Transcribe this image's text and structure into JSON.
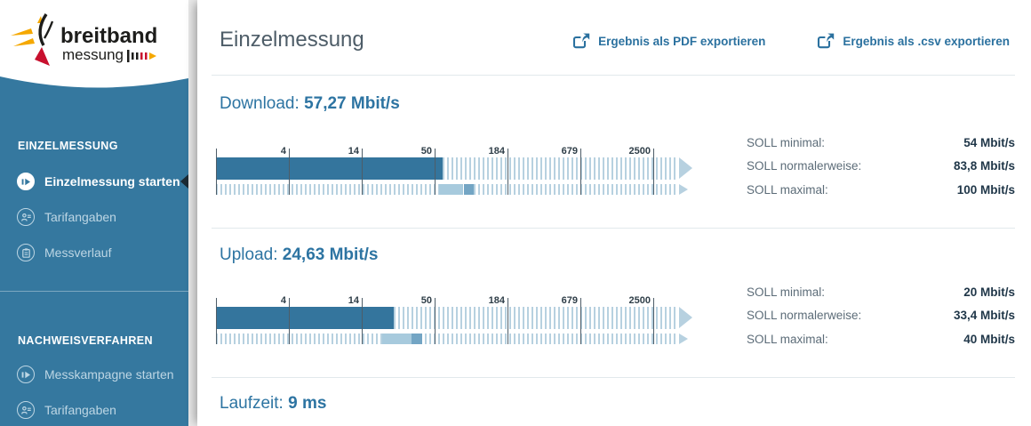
{
  "brand": {
    "line1": "breitband",
    "line2": "messung"
  },
  "colors": {
    "sidebar": "#35789f",
    "accent_blue": "#2d74a2",
    "bar_fill": "#34759d",
    "hatch_stripe": "#b7d1e0",
    "soll_range_low": "#a7cadd",
    "soll_range_high": "#73a5c4",
    "brand_red": "#c8102e",
    "brand_yellow": "#f5a800"
  },
  "icons": {
    "export": "share-arrow-icon",
    "measure_start": "play-circle-icon",
    "tariff": "person-card-icon",
    "history": "clipboard-icon",
    "active_marker": "left-triangle-marker",
    "scale_end": "right-arrow-head"
  },
  "sidebar": {
    "sections": [
      {
        "title": "EINZELMESSUNG",
        "items": [
          {
            "label": "Einzelmessung starten",
            "active": true
          },
          {
            "label": "Tarifangaben",
            "active": false
          },
          {
            "label": "Messverlauf",
            "active": false
          }
        ]
      },
      {
        "title": "NACHWEISVERFAHREN",
        "items": [
          {
            "label": "Messkampagne starten",
            "active": false
          },
          {
            "label": "Tarifangaben",
            "active": false
          }
        ]
      }
    ]
  },
  "header": {
    "title": "Einzelmessung",
    "export_pdf": "Ergebnis als PDF exportieren",
    "export_csv": "Ergebnis als .csv exportieren"
  },
  "chart_data": [
    {
      "type": "bar",
      "title": "Download:",
      "value": 57.27,
      "value_label": "57,27 Mbit/s",
      "unit": "Mbit/s",
      "scale": "logarithmic",
      "scale_ticks": [
        4,
        14,
        50,
        184,
        679,
        2500
      ],
      "soll_rows": [
        {
          "label": "SOLL minimal:",
          "value": 54,
          "value_label": "54 Mbit/s"
        },
        {
          "label": "SOLL normalerweise:",
          "value": 83.8,
          "value_label": "83,8 Mbit/s"
        },
        {
          "label": "SOLL maximal:",
          "value": 100,
          "value_label": "100 Mbit/s"
        }
      ]
    },
    {
      "type": "bar",
      "title": "Upload:",
      "value": 24.63,
      "value_label": "24,63 Mbit/s",
      "unit": "Mbit/s",
      "scale": "logarithmic",
      "scale_ticks": [
        4,
        14,
        50,
        184,
        679,
        2500
      ],
      "soll_rows": [
        {
          "label": "SOLL minimal:",
          "value": 20,
          "value_label": "20 Mbit/s"
        },
        {
          "label": "SOLL normalerweise:",
          "value": 33.4,
          "value_label": "33,4 Mbit/s"
        },
        {
          "label": "SOLL maximal:",
          "value": 40,
          "value_label": "40 Mbit/s"
        }
      ]
    }
  ],
  "laufzeit": {
    "label": "Laufzeit:",
    "value_label": "9 ms"
  }
}
